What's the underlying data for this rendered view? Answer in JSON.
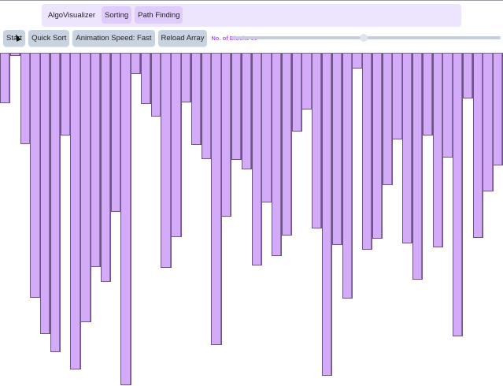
{
  "navbar": {
    "brand": "AlgoVisualizer",
    "items": [
      {
        "label": "Sorting"
      },
      {
        "label": "Path Finding"
      }
    ]
  },
  "controls": {
    "start_label": "Start",
    "algorithm_label": "Quick Sort",
    "speed_label": "Animation Speed: Fast",
    "reload_label": "Reload Array",
    "blocks_label": "No. of Blocks 50",
    "blocks_value": 50,
    "slider_percent": 49
  },
  "colors": {
    "bar_fill": "#d4abf9",
    "bar_border": "#6e5585",
    "navbar_bg": "#ede4fd",
    "nav_button_bg": "#e0ccfb",
    "control_button_bg": "#c9d3e0",
    "blocks_label": "#b058f2"
  },
  "bars": {
    "count": 50,
    "heights": [
      63,
      3,
      115,
      310,
      356,
      379,
      104,
      401,
      341,
      271,
      290,
      201,
      421,
      26,
      64,
      80,
      272,
      233,
      62,
      116,
      134,
      370,
      207,
      135,
      147,
      269,
      189,
      257,
      231,
      99,
      71,
      222,
      409,
      243,
      311,
      19,
      249,
      235,
      167,
      109,
      241,
      287,
      104,
      246,
      132,
      359,
      57,
      234,
      175,
      142
    ]
  }
}
